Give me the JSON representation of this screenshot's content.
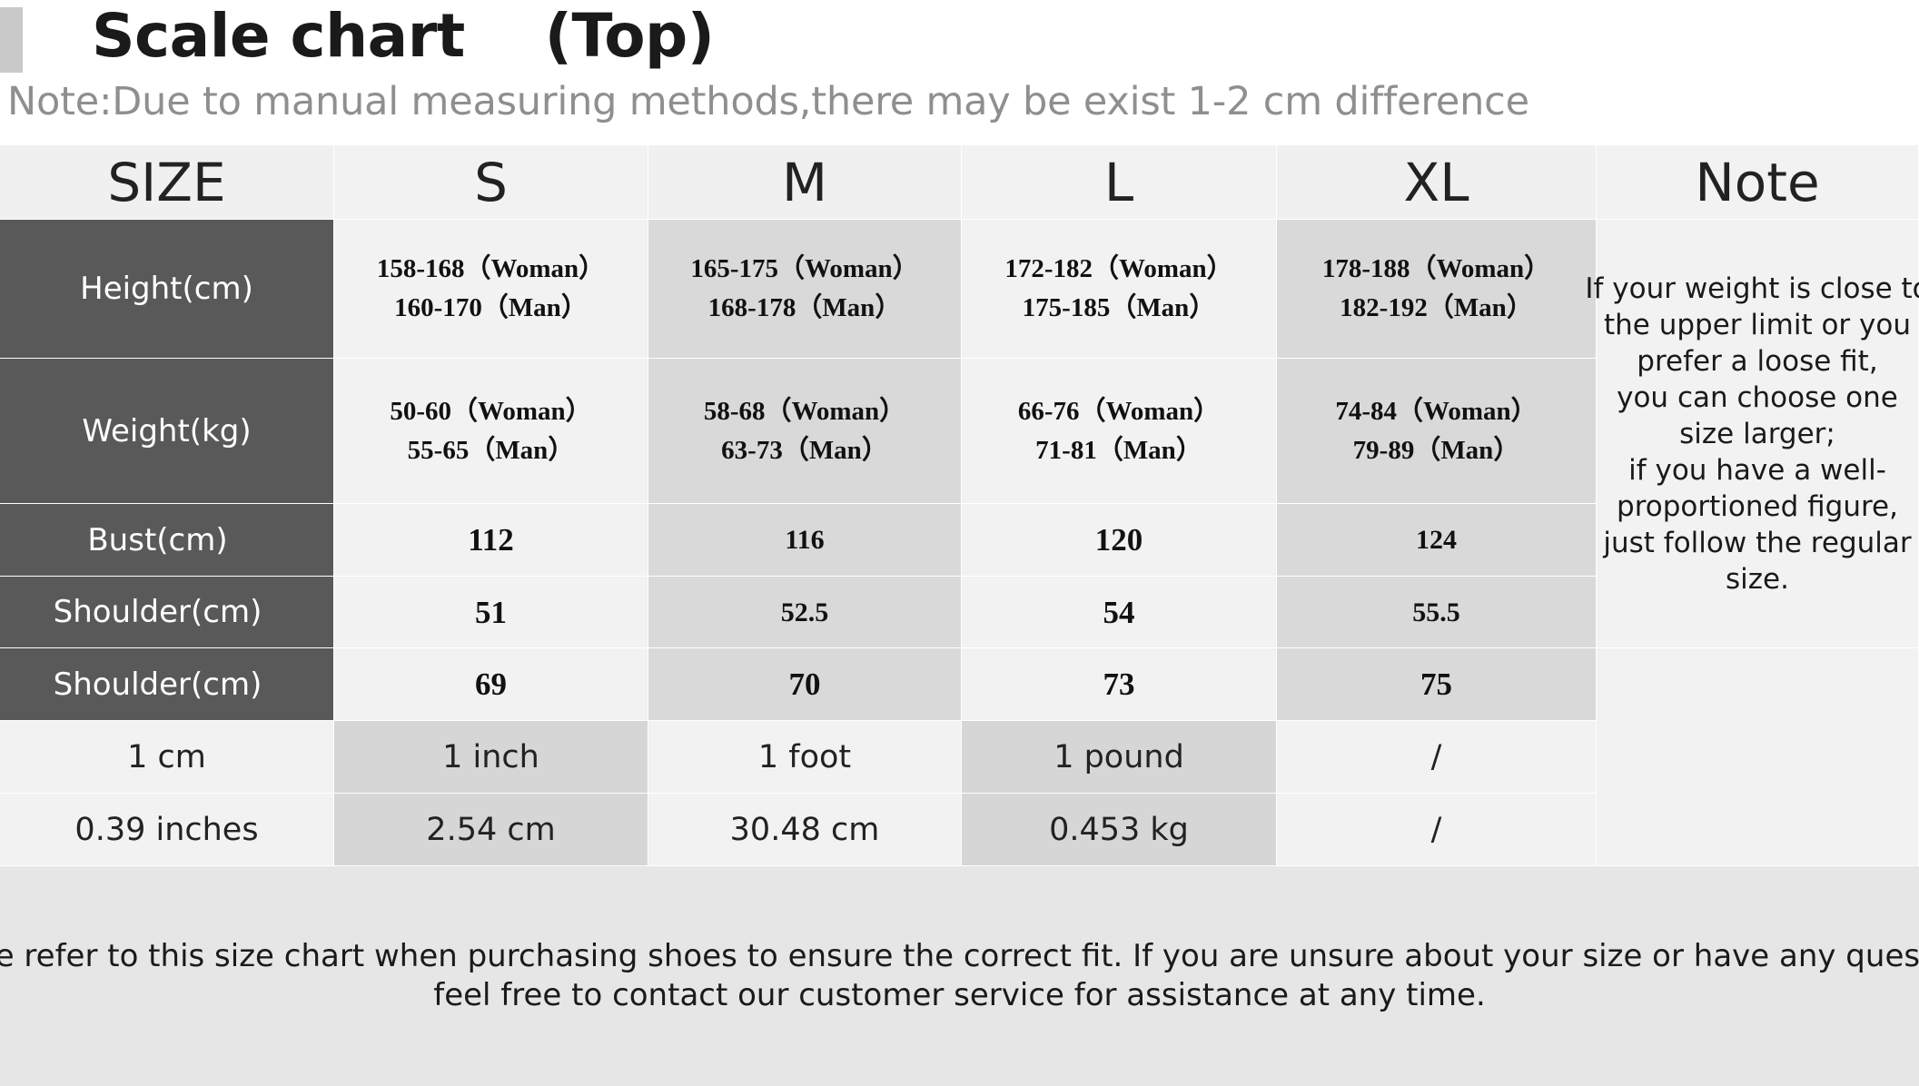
{
  "title": "Scale chart 　(Top)",
  "note": "Note:Due to manual measuring methods,there may be exist 1-2 cm difference",
  "table": {
    "headers": [
      "SIZE",
      "S",
      "M",
      "L",
      "XL",
      "Note"
    ],
    "rows": [
      {
        "label": "Height(cm)",
        "values": [
          [
            "158-168（Woman）",
            "160-170（Man）"
          ],
          [
            "165-175（Woman）",
            "168-178（Man）"
          ],
          [
            "172-182（Woman）",
            "175-185（Man）"
          ],
          [
            "178-188（Woman）",
            "182-192（Man）"
          ]
        ]
      },
      {
        "label": "Weight(kg)",
        "values": [
          [
            "50-60（Woman）",
            "55-65（Man）"
          ],
          [
            "58-68（Woman）",
            "63-73（Man）"
          ],
          [
            "66-76（Woman）",
            "71-81（Man）"
          ],
          [
            "74-84（Woman）",
            "79-89（Man）"
          ]
        ]
      },
      {
        "label": "Bust(cm)",
        "values": [
          "112",
          "116",
          "120",
          "124"
        ]
      },
      {
        "label": "Shoulder(cm)",
        "values": [
          "51",
          "52.5",
          "54",
          "55.5"
        ]
      },
      {
        "label": "Shoulder(cm)",
        "values": [
          "69",
          "70",
          "73",
          "75"
        ]
      }
    ],
    "note_lines": [
      "If your weight is close to",
      "the upper limit or you",
      "prefer a loose fit,",
      "you can choose one",
      "size larger;",
      "if you have a well-",
      "proportioned figure,",
      "just follow the regular",
      "size."
    ],
    "conversion_rows": [
      [
        "1 cm",
        "1 inch",
        "1 foot",
        "1 pound",
        "/"
      ],
      [
        "0.39 inches",
        "2.54 cm",
        "30.48 cm",
        "0.453 kg",
        "/"
      ]
    ]
  },
  "footer": [
    "Please refer to this size chart when purchasing shoes to ensure the correct fit. If you are unsure about your size or have any questions,",
    "feel free to contact our customer service for assistance at any time."
  ],
  "colors": {
    "label_bg": "#595959",
    "light_bg": "#f2f2f2",
    "mid_bg": "#d9d9d9",
    "footer_bg": "#e6e6e6"
  }
}
